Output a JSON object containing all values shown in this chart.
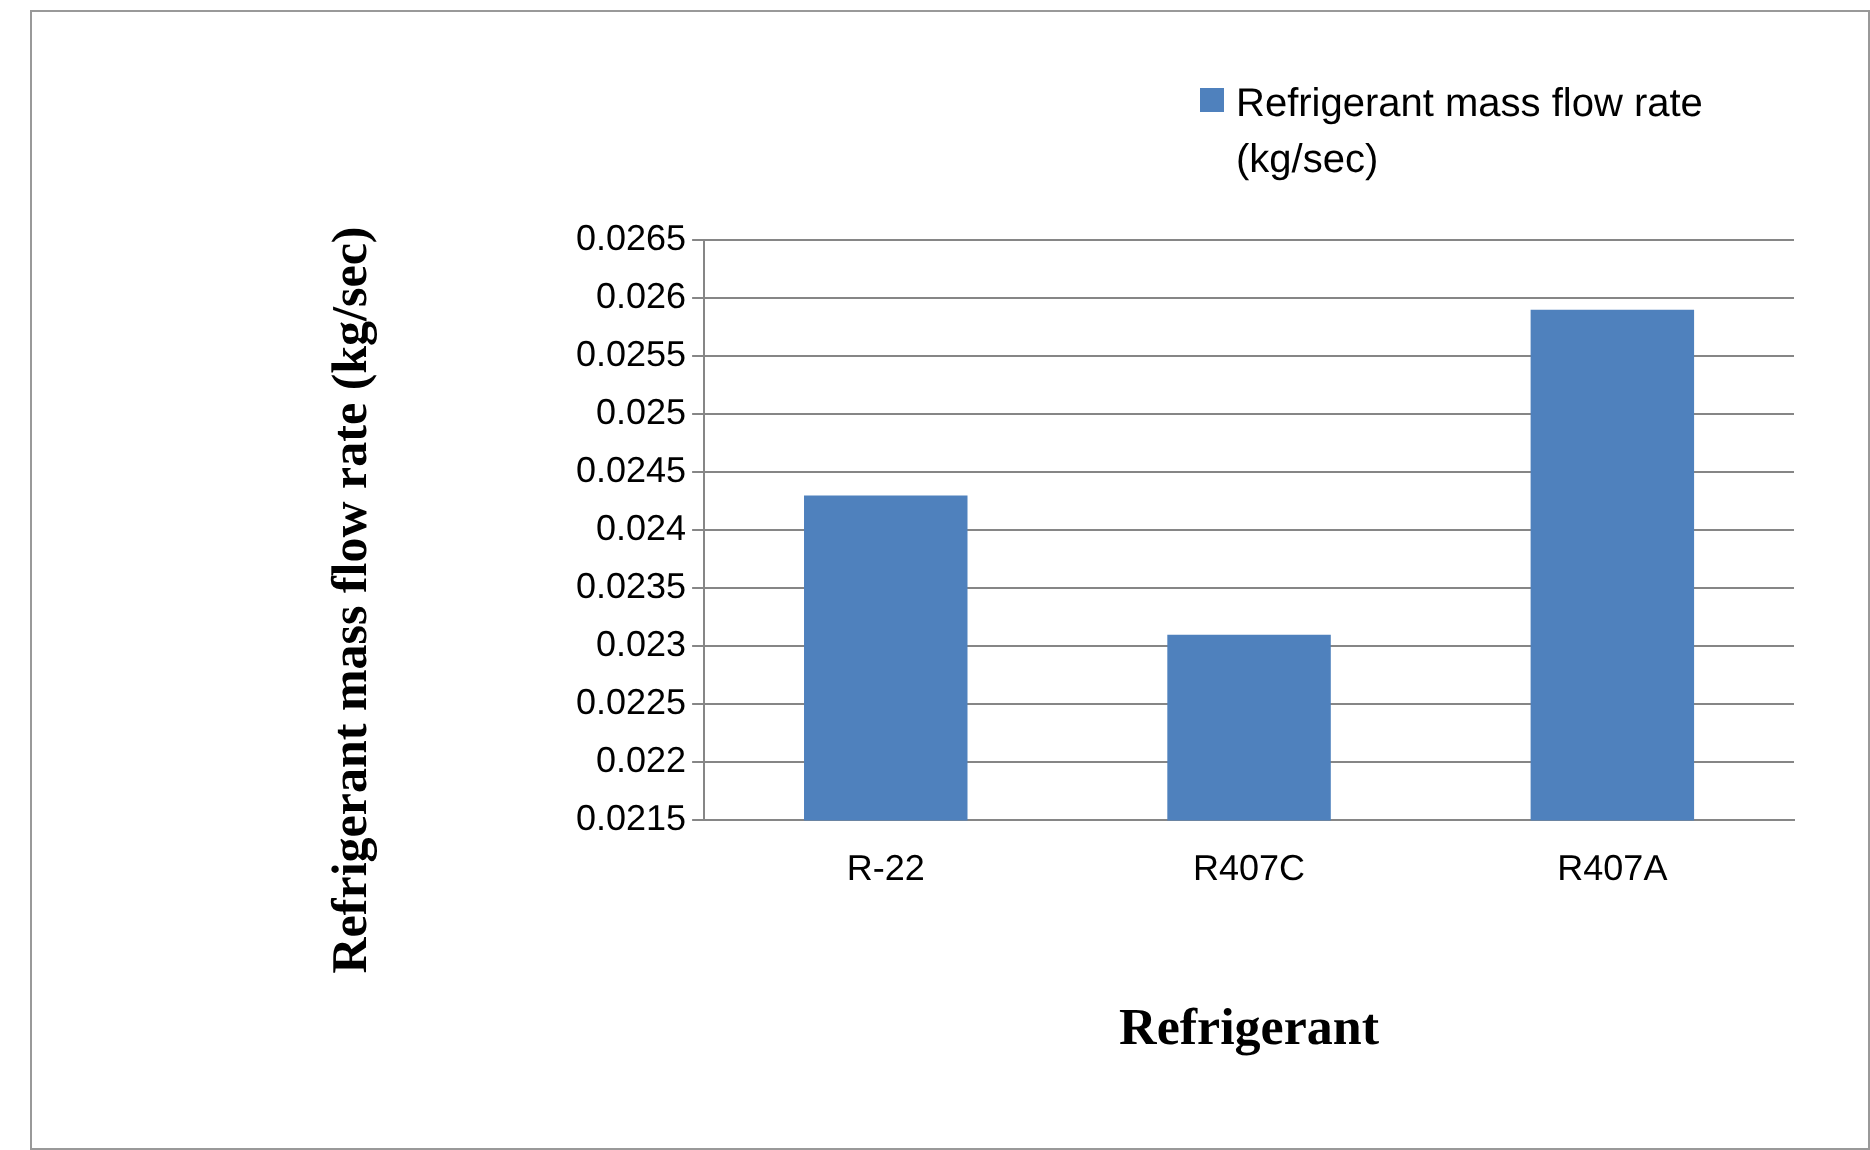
{
  "chart_data": {
    "type": "bar",
    "categories": [
      "R-22",
      "R407C",
      "R407A"
    ],
    "series": [
      {
        "name": "Refrigerant mass flow rate (kg/sec)",
        "color": "#4f81bd",
        "values": [
          0.0243,
          0.0231,
          0.0259
        ]
      }
    ],
    "xlabel": "Refrigerant",
    "ylabel": "Refrigerant mass flow rate (kg/sec)",
    "ylim": [
      0.0215,
      0.0265
    ],
    "yticks": [
      0.0215,
      0.022,
      0.0225,
      0.023,
      0.0235,
      0.024,
      0.0245,
      0.025,
      0.0255,
      0.026,
      0.0265
    ],
    "grid": "y",
    "legend": "top right"
  }
}
